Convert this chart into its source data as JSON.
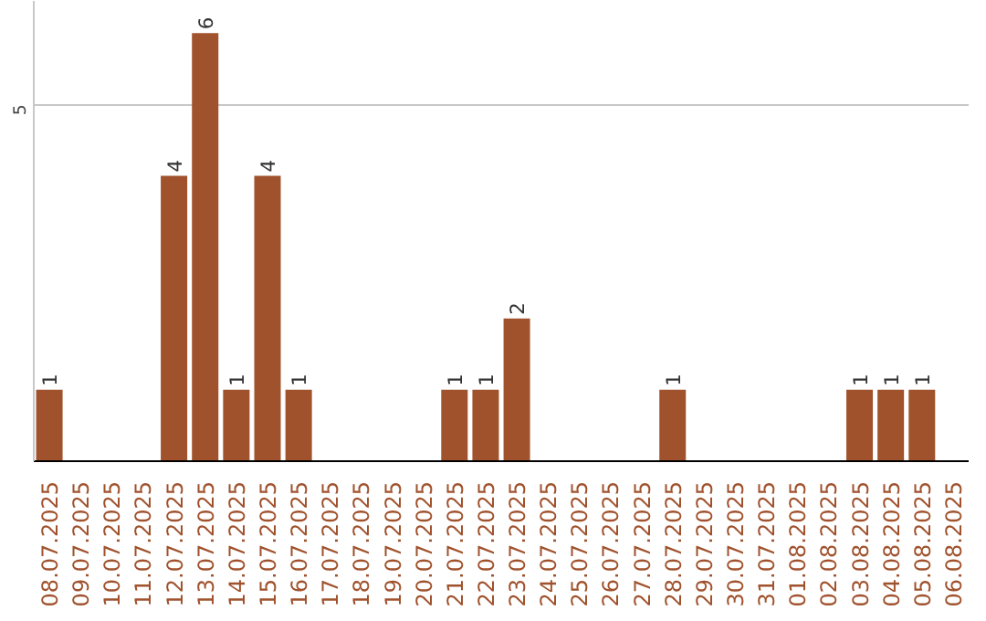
{
  "chart_data": {
    "type": "bar",
    "categories": [
      "08.07.2025",
      "09.07.2025",
      "10.07.2025",
      "11.07.2025",
      "12.07.2025",
      "13.07.2025",
      "14.07.2025",
      "15.07.2025",
      "16.07.2025",
      "17.07.2025",
      "18.07.2025",
      "19.07.2025",
      "20.07.2025",
      "21.07.2025",
      "22.07.2025",
      "23.07.2025",
      "24.07.2025",
      "25.07.2025",
      "26.07.2025",
      "27.07.2025",
      "28.07.2025",
      "29.07.2025",
      "30.07.2025",
      "31.07.2025",
      "01.08.2025",
      "02.08.2025",
      "03.08.2025",
      "04.08.2025",
      "05.08.2025",
      "06.08.2025"
    ],
    "values": [
      1,
      0,
      0,
      0,
      4,
      6,
      1,
      4,
      1,
      0,
      0,
      0,
      0,
      1,
      1,
      2,
      0,
      0,
      0,
      0,
      1,
      0,
      0,
      0,
      0,
      0,
      1,
      1,
      1,
      0
    ],
    "value_labels": [
      "1",
      null,
      null,
      null,
      "4",
      "6",
      "1",
      "4",
      "1",
      null,
      null,
      null,
      null,
      "1",
      "1",
      "2",
      null,
      null,
      null,
      null,
      "1",
      null,
      null,
      null,
      null,
      null,
      "1",
      "1",
      "1",
      null
    ],
    "color": "#a0522d",
    "ylim": [
      0,
      6.45
    ],
    "yticks": [
      5
    ],
    "grid": "y"
  }
}
